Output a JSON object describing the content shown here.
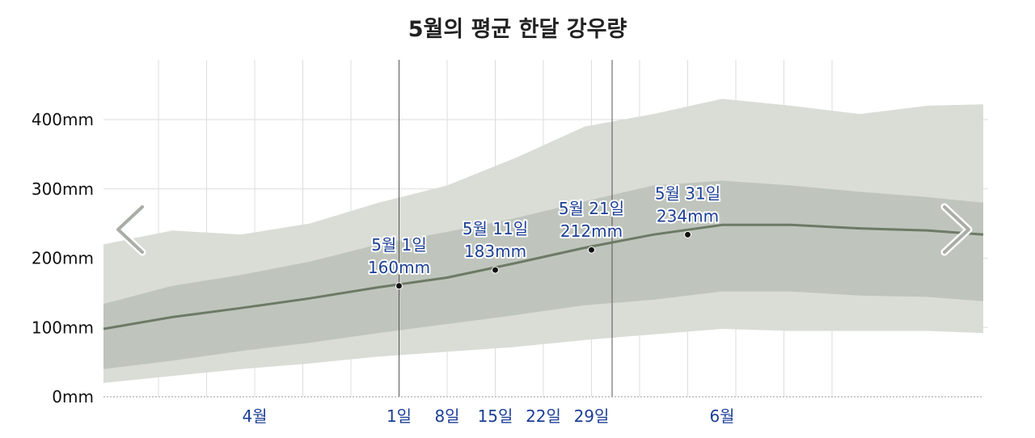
{
  "chart_data": {
    "type": "area",
    "title": "5월의 평균 한달 강우량",
    "y_unit": "mm",
    "ylim": [
      0,
      400
    ],
    "y_ticks": [
      {
        "value": 0,
        "label": "0mm"
      },
      {
        "value": 100,
        "label": "100mm"
      },
      {
        "value": 200,
        "label": "200mm"
      },
      {
        "value": 300,
        "label": "300mm"
      },
      {
        "value": 400,
        "label": "400mm"
      }
    ],
    "x_labels": [
      {
        "label": "4월",
        "day": 22
      },
      {
        "label": "1일",
        "day": 43
      },
      {
        "label": "8일",
        "day": 50
      },
      {
        "label": "15일",
        "day": 57
      },
      {
        "label": "22일",
        "day": 64
      },
      {
        "label": "29일",
        "day": 71
      },
      {
        "label": "6월",
        "day": 90
      }
    ],
    "gridlines_x_days": [
      8,
      15,
      22,
      29,
      36,
      43,
      50,
      57,
      64,
      71,
      78,
      85,
      92,
      99,
      106
    ],
    "month_lines_x_days": [
      43,
      74
    ],
    "xlim_days": [
      0,
      128
    ],
    "series": [
      {
        "role": "median",
        "x": [
          0,
          10,
          20,
          30,
          40,
          50,
          60,
          70,
          80,
          90,
          100,
          110,
          120,
          128
        ],
        "values": [
          98,
          115,
          128,
          142,
          158,
          172,
          193,
          215,
          234,
          248,
          248,
          243,
          240,
          234
        ]
      },
      {
        "role": "band_25_75",
        "x": [
          0,
          10,
          20,
          30,
          40,
          50,
          60,
          70,
          80,
          90,
          100,
          110,
          120,
          128
        ],
        "low": [
          40,
          52,
          66,
          78,
          92,
          105,
          118,
          132,
          140,
          152,
          152,
          146,
          144,
          138
        ],
        "high": [
          134,
          160,
          176,
          195,
          220,
          238,
          258,
          282,
          305,
          312,
          305,
          296,
          288,
          280
        ]
      },
      {
        "role": "band_10_90",
        "x": [
          0,
          10,
          20,
          30,
          40,
          50,
          60,
          70,
          80,
          90,
          100,
          110,
          120,
          128
        ],
        "low": [
          20,
          30,
          40,
          48,
          58,
          65,
          72,
          82,
          90,
          98,
          95,
          95,
          95,
          92
        ],
        "high": [
          220,
          240,
          234,
          250,
          280,
          305,
          345,
          390,
          408,
          430,
          420,
          408,
          420,
          422
        ]
      }
    ],
    "annotations": [
      {
        "day": 43,
        "value": 160,
        "line1": "5월 1일",
        "line2": "160mm"
      },
      {
        "day": 57,
        "value": 183,
        "line1": "5월 11일",
        "line2": "183mm"
      },
      {
        "day": 71,
        "value": 212,
        "line1": "5월 21일",
        "line2": "212mm"
      },
      {
        "day": 85,
        "value": 234,
        "line1": "5월 31일",
        "line2": "234mm"
      }
    ],
    "colors": {
      "outer_band": "#d9ddd6",
      "inner_band": "#bfc5bc",
      "median_line": "#6d7a66",
      "annotation_text": "#1c3f95",
      "grid": "#dddddd",
      "month_line": "#555555"
    }
  },
  "nav": {
    "prev_icon": "chevron-left-icon",
    "next_icon": "chevron-right-icon"
  }
}
